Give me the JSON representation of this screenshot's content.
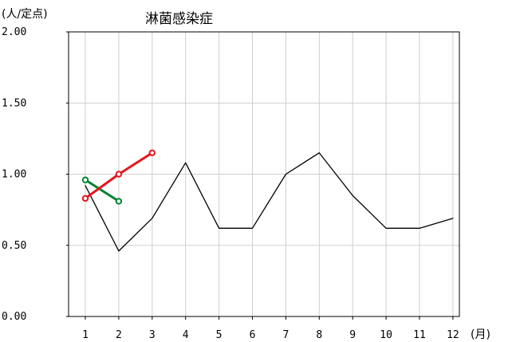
{
  "chart_data": {
    "type": "line",
    "title": "淋菌感染症",
    "ylabel": "(人/定点)",
    "xlabel": "(月)",
    "categories": [
      "1",
      "2",
      "3",
      "4",
      "5",
      "6",
      "7",
      "8",
      "9",
      "10",
      "11",
      "12"
    ],
    "x_ticks": [
      "1",
      "2",
      "3",
      "4",
      "5",
      "6",
      "7",
      "8",
      "9",
      "10",
      "11",
      "12"
    ],
    "y_ticks": [
      "0.00",
      "0.50",
      "1.00",
      "1.50",
      "2.00"
    ],
    "ylim": [
      0,
      2
    ],
    "grid": true,
    "series": [
      {
        "color": "#000000",
        "values": [
          0.92,
          0.46,
          0.69,
          1.08,
          0.62,
          0.62,
          1.0,
          1.15,
          0.85,
          0.62,
          0.62,
          0.69
        ]
      },
      {
        "color": "#00852f",
        "values": [
          0.96,
          0.81,
          null,
          null,
          null,
          null,
          null,
          null,
          null,
          null,
          null,
          null
        ]
      },
      {
        "color": "#e8141b",
        "values": [
          0.83,
          1.0,
          1.15,
          null,
          null,
          null,
          null,
          null,
          null,
          null,
          null,
          null
        ]
      }
    ]
  }
}
